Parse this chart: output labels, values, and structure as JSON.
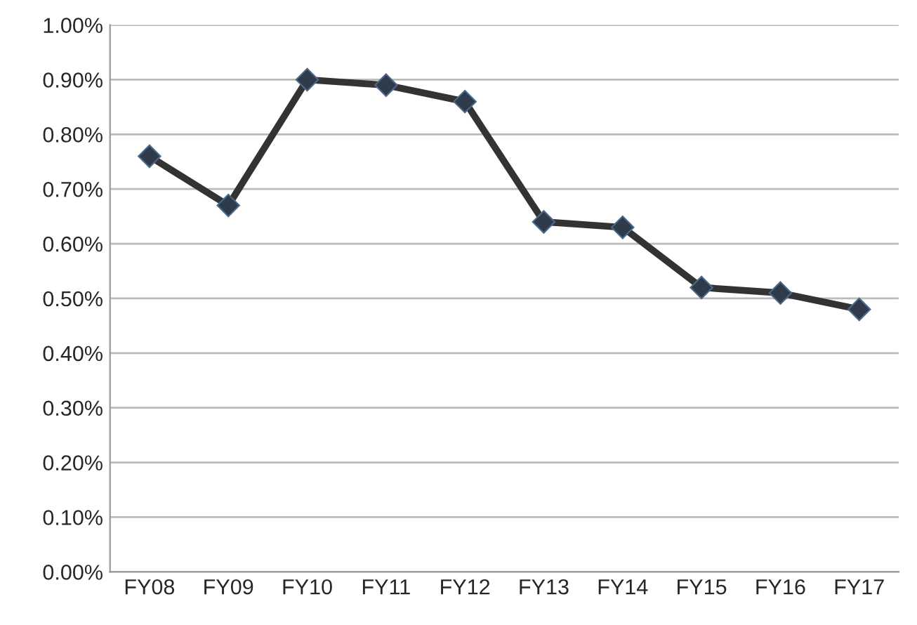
{
  "chart_data": {
    "type": "line",
    "categories": [
      "FY08",
      "FY09",
      "FY10",
      "FY11",
      "FY12",
      "FY13",
      "FY14",
      "FY15",
      "FY16",
      "FY17"
    ],
    "series": [
      {
        "color": "#333333",
        "values": [
          0.76,
          0.67,
          0.9,
          0.89,
          0.86,
          0.64,
          0.63,
          0.52,
          0.51,
          0.48
        ]
      }
    ],
    "ylim": [
      0,
      1.0
    ],
    "yticks": [
      {
        "value": 0,
        "label": "0.00%"
      },
      {
        "value": 0.1,
        "label": "0.10%"
      },
      {
        "value": 0.2,
        "label": "0.20%"
      },
      {
        "value": 0.3,
        "label": "0.30%"
      },
      {
        "value": 0.4,
        "label": "0.40%"
      },
      {
        "value": 0.5,
        "label": "0.50%"
      },
      {
        "value": 0.6,
        "label": "0.60%"
      },
      {
        "value": 0.7,
        "label": "0.70%"
      },
      {
        "value": 0.8,
        "label": "0.80%"
      },
      {
        "value": 0.9,
        "label": "0.90%"
      },
      {
        "value": 1.0,
        "label": "1.00%"
      }
    ],
    "grid": "y",
    "marker": "diamond",
    "line_style": "solid",
    "legend": false
  }
}
